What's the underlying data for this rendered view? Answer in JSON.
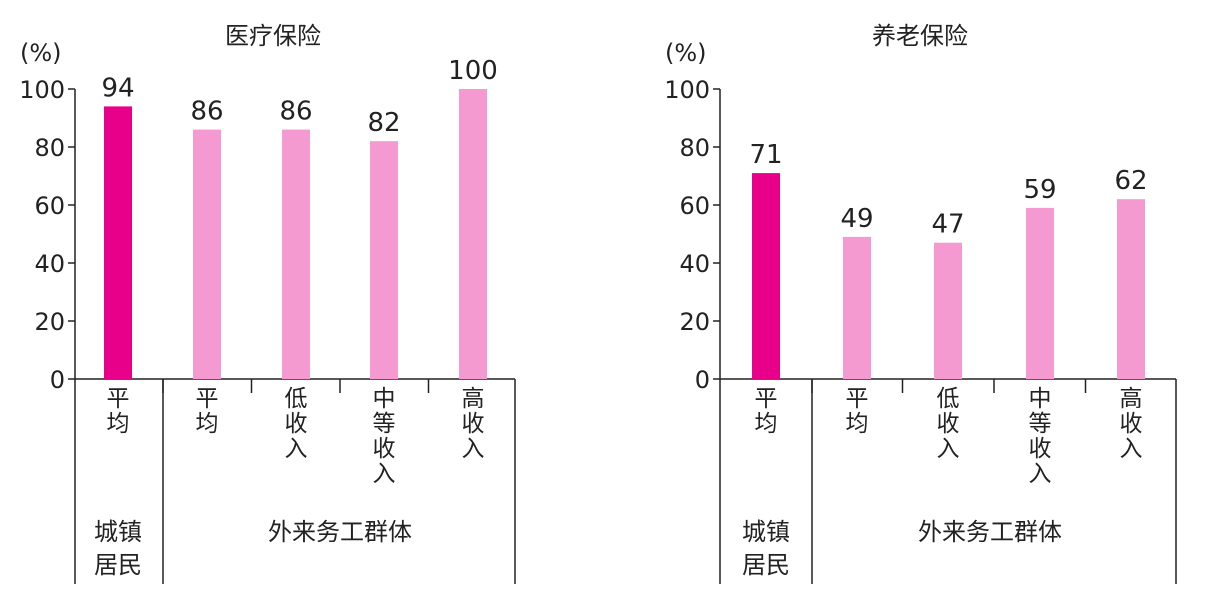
{
  "chart_data": [
    {
      "type": "bar",
      "title": "医疗保险",
      "unit_label": "(%)",
      "ylim": [
        0,
        100
      ],
      "yticks": [
        "0",
        "20",
        "40",
        "60",
        "80",
        "100"
      ],
      "categories": [
        "平均",
        "平均",
        "低收入",
        "中等收入",
        "高收入"
      ],
      "values": [
        94,
        86,
        86,
        82,
        100
      ],
      "groups": [
        {
          "label_lines": [
            "城镇",
            "居民"
          ],
          "span": [
            0,
            0
          ]
        },
        {
          "label_lines": [
            "外来务工群体"
          ],
          "span": [
            1,
            4
          ]
        }
      ],
      "colors": [
        "#e8008a",
        "#f49ad0",
        "#f49ad0",
        "#f49ad0",
        "#f49ad0"
      ]
    },
    {
      "type": "bar",
      "title": "养老保险",
      "unit_label": "(%)",
      "ylim": [
        0,
        100
      ],
      "yticks": [
        "0",
        "20",
        "40",
        "60",
        "80",
        "100"
      ],
      "categories": [
        "平均",
        "平均",
        "低收入",
        "中等收入",
        "高收入"
      ],
      "values": [
        71,
        49,
        47,
        59,
        62
      ],
      "groups": [
        {
          "label_lines": [
            "城镇",
            "居民"
          ],
          "span": [
            0,
            0
          ]
        },
        {
          "label_lines": [
            "外来务工群体"
          ],
          "span": [
            1,
            4
          ]
        }
      ],
      "colors": [
        "#e8008a",
        "#f49ad0",
        "#f49ad0",
        "#f49ad0",
        "#f49ad0"
      ]
    }
  ]
}
